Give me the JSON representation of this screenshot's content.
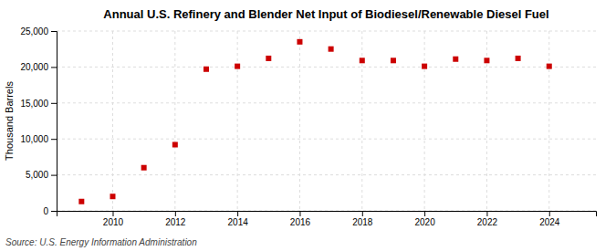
{
  "chart_data": {
    "type": "scatter",
    "title": "Annual U.S. Refinery and Blender Net Input of Biodiesel/Renewable Diesel Fuel",
    "ylabel": "Thousand Barrels",
    "annotations": [
      "Source: U.S. Energy Information Administration"
    ],
    "x": [
      2009,
      2010,
      2011,
      2012,
      2013,
      2014,
      2015,
      2016,
      2017,
      2018,
      2019,
      2020,
      2021,
      2022,
      2023,
      2024
    ],
    "values": [
      1300,
      2000,
      6000,
      9200,
      19700,
      20100,
      21200,
      23500,
      22500,
      20900,
      20900,
      20100,
      21100,
      20900,
      21200,
      20100
    ],
    "color": "#cc0000",
    "marker": "square",
    "xlim": [
      2008.2,
      2025.5
    ],
    "xticks": [
      2010,
      2012,
      2014,
      2016,
      2018,
      2020,
      2022,
      2024
    ],
    "ylim": [
      0,
      25000
    ],
    "yticks": [
      0,
      {
        "value": 5000,
        "label": "5,000"
      },
      {
        "value": 10000,
        "label": "10,000"
      },
      {
        "value": 15000,
        "label": "15,000"
      },
      {
        "value": 20000,
        "label": "20,000"
      },
      {
        "value": 25000,
        "label": "25,000"
      }
    ],
    "grid": true
  }
}
